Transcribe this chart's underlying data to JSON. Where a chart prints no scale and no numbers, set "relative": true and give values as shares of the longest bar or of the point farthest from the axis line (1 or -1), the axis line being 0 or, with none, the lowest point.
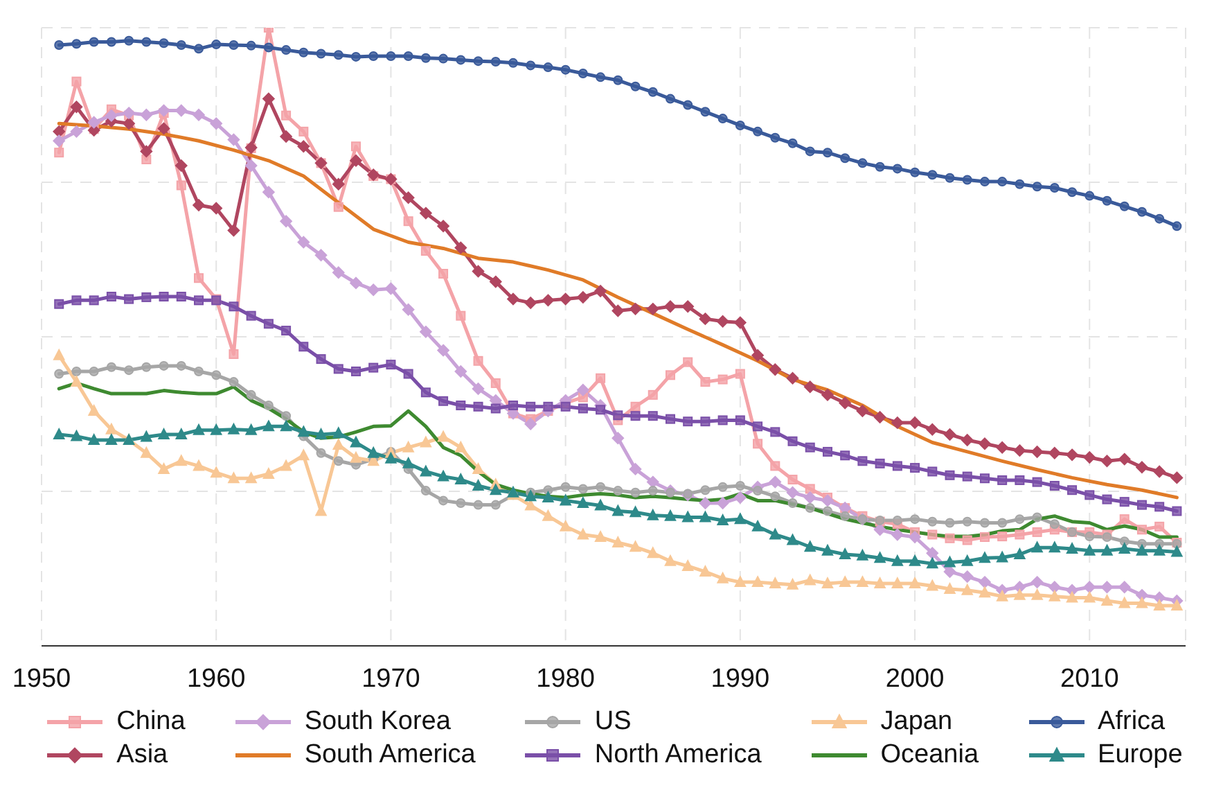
{
  "chart_data": {
    "type": "line",
    "relative": true,
    "x": [
      1951,
      1952,
      1953,
      1954,
      1955,
      1956,
      1957,
      1958,
      1959,
      1960,
      1961,
      1962,
      1963,
      1964,
      1965,
      1966,
      1967,
      1968,
      1969,
      1970,
      1971,
      1972,
      1973,
      1974,
      1975,
      1976,
      1977,
      1978,
      1979,
      1980,
      1981,
      1982,
      1983,
      1984,
      1985,
      1986,
      1987,
      1988,
      1989,
      1990,
      1991,
      1992,
      1993,
      1994,
      1995,
      1996,
      1997,
      1998,
      1999,
      2000,
      2001,
      2002,
      2003,
      2004,
      2005,
      2006,
      2007,
      2008,
      2009,
      2010,
      2011,
      2012,
      2013,
      2014,
      2015
    ],
    "xlim": [
      1950,
      2015.5
    ],
    "xticks": [
      1950,
      1960,
      1970,
      1980,
      1990,
      2000,
      2010
    ],
    "grid": true,
    "legend": "bottom",
    "series": [
      {
        "name": "China",
        "color": "#f4a3a8",
        "marker": "square",
        "values": [
          0.798,
          0.913,
          0.836,
          0.868,
          0.858,
          0.787,
          0.862,
          0.745,
          0.595,
          0.561,
          0.472,
          0.805,
          1.0,
          0.858,
          0.832,
          0.781,
          0.71,
          0.808,
          0.76,
          0.755,
          0.687,
          0.639,
          0.602,
          0.534,
          0.461,
          0.425,
          0.376,
          0.367,
          0.38,
          0.393,
          0.402,
          0.433,
          0.365,
          0.387,
          0.406,
          0.438,
          0.459,
          0.427,
          0.431,
          0.44,
          0.327,
          0.291,
          0.269,
          0.254,
          0.24,
          0.223,
          0.21,
          0.201,
          0.197,
          0.184,
          0.18,
          0.174,
          0.171,
          0.176,
          0.177,
          0.18,
          0.184,
          0.188,
          0.184,
          0.184,
          0.18,
          0.205,
          0.188,
          0.193,
          0.167
        ]
      },
      {
        "name": "Asia",
        "color": "#b04660",
        "marker": "diamond",
        "values": [
          0.832,
          0.872,
          0.834,
          0.849,
          0.845,
          0.8,
          0.837,
          0.777,
          0.713,
          0.708,
          0.672,
          0.806,
          0.885,
          0.824,
          0.808,
          0.781,
          0.747,
          0.785,
          0.762,
          0.755,
          0.725,
          0.7,
          0.679,
          0.644,
          0.606,
          0.589,
          0.561,
          0.555,
          0.559,
          0.561,
          0.564,
          0.574,
          0.542,
          0.545,
          0.545,
          0.549,
          0.549,
          0.529,
          0.525,
          0.523,
          0.47,
          0.447,
          0.433,
          0.419,
          0.406,
          0.393,
          0.38,
          0.37,
          0.361,
          0.361,
          0.35,
          0.342,
          0.333,
          0.327,
          0.321,
          0.316,
          0.314,
          0.312,
          0.309,
          0.305,
          0.299,
          0.302,
          0.289,
          0.282,
          0.272
        ]
      },
      {
        "name": "South Korea",
        "color": "#c9a2d8",
        "marker": "diamond",
        "values": [
          0.817,
          0.832,
          0.847,
          0.858,
          0.862,
          0.859,
          0.866,
          0.866,
          0.859,
          0.845,
          0.819,
          0.777,
          0.734,
          0.687,
          0.653,
          0.632,
          0.604,
          0.587,
          0.576,
          0.578,
          0.544,
          0.508,
          0.478,
          0.444,
          0.416,
          0.397,
          0.376,
          0.359,
          0.38,
          0.397,
          0.414,
          0.389,
          0.336,
          0.286,
          0.265,
          0.251,
          0.244,
          0.231,
          0.231,
          0.24,
          0.257,
          0.265,
          0.248,
          0.24,
          0.235,
          0.223,
          0.205,
          0.188,
          0.18,
          0.176,
          0.15,
          0.12,
          0.112,
          0.103,
          0.09,
          0.095,
          0.103,
          0.095,
          0.09,
          0.095,
          0.095,
          0.095,
          0.082,
          0.078,
          0.073
        ]
      },
      {
        "name": "South America",
        "color": "#e07b28",
        "marker": "none",
        "x": [
          1951,
          1953,
          1955,
          1957,
          1959,
          1961,
          1963,
          1965,
          1967,
          1969,
          1971,
          1973,
          1975,
          1977,
          1979,
          1981,
          1983,
          1985,
          1987,
          1989,
          1991,
          1993,
          1995,
          1997,
          1999,
          2001,
          2003,
          2005,
          2007,
          2009,
          2011,
          2013,
          2015
        ],
        "values": [
          0.845,
          0.841,
          0.836,
          0.828,
          0.817,
          0.802,
          0.785,
          0.76,
          0.717,
          0.674,
          0.653,
          0.643,
          0.627,
          0.621,
          0.608,
          0.592,
          0.564,
          0.538,
          0.512,
          0.487,
          0.461,
          0.431,
          0.414,
          0.389,
          0.355,
          0.329,
          0.314,
          0.299,
          0.285,
          0.272,
          0.261,
          0.252,
          0.24
        ]
      },
      {
        "name": "US",
        "color": "#a6a6a6",
        "marker": "circle",
        "values": [
          0.44,
          0.444,
          0.444,
          0.451,
          0.446,
          0.451,
          0.453,
          0.453,
          0.444,
          0.438,
          0.427,
          0.406,
          0.389,
          0.372,
          0.339,
          0.312,
          0.299,
          0.293,
          0.302,
          0.314,
          0.286,
          0.251,
          0.235,
          0.231,
          0.228,
          0.228,
          0.244,
          0.248,
          0.252,
          0.257,
          0.254,
          0.257,
          0.251,
          0.248,
          0.251,
          0.248,
          0.246,
          0.252,
          0.257,
          0.259,
          0.251,
          0.242,
          0.231,
          0.223,
          0.218,
          0.21,
          0.205,
          0.203,
          0.203,
          0.205,
          0.201,
          0.199,
          0.201,
          0.199,
          0.199,
          0.205,
          0.208,
          0.197,
          0.184,
          0.177,
          0.176,
          0.169,
          0.165,
          0.165,
          0.165
        ]
      },
      {
        "name": "North America",
        "color": "#7a4fa8",
        "marker": "square",
        "values": [
          0.553,
          0.559,
          0.559,
          0.565,
          0.561,
          0.564,
          0.565,
          0.565,
          0.559,
          0.559,
          0.549,
          0.534,
          0.521,
          0.51,
          0.484,
          0.464,
          0.448,
          0.444,
          0.45,
          0.455,
          0.44,
          0.41,
          0.396,
          0.389,
          0.387,
          0.384,
          0.389,
          0.387,
          0.387,
          0.387,
          0.384,
          0.382,
          0.373,
          0.372,
          0.372,
          0.367,
          0.363,
          0.363,
          0.365,
          0.365,
          0.355,
          0.346,
          0.331,
          0.321,
          0.314,
          0.308,
          0.299,
          0.295,
          0.291,
          0.288,
          0.282,
          0.276,
          0.274,
          0.271,
          0.268,
          0.268,
          0.265,
          0.259,
          0.252,
          0.244,
          0.237,
          0.233,
          0.228,
          0.225,
          0.218
        ]
      },
      {
        "name": "Japan",
        "color": "#f8c795",
        "marker": "triangle",
        "values": [
          0.47,
          0.427,
          0.38,
          0.35,
          0.333,
          0.312,
          0.286,
          0.299,
          0.291,
          0.28,
          0.271,
          0.271,
          0.278,
          0.291,
          0.308,
          0.218,
          0.325,
          0.304,
          0.299,
          0.312,
          0.321,
          0.329,
          0.338,
          0.321,
          0.286,
          0.261,
          0.244,
          0.227,
          0.21,
          0.193,
          0.18,
          0.176,
          0.167,
          0.16,
          0.15,
          0.137,
          0.129,
          0.12,
          0.109,
          0.103,
          0.103,
          0.101,
          0.099,
          0.106,
          0.101,
          0.103,
          0.103,
          0.101,
          0.101,
          0.101,
          0.097,
          0.092,
          0.09,
          0.086,
          0.08,
          0.082,
          0.082,
          0.08,
          0.078,
          0.078,
          0.073,
          0.069,
          0.069,
          0.065,
          0.065
        ]
      },
      {
        "name": "Oceania",
        "color": "#3e8a30",
        "marker": "none",
        "values": [
          0.416,
          0.425,
          0.416,
          0.408,
          0.408,
          0.408,
          0.413,
          0.41,
          0.408,
          0.408,
          0.419,
          0.397,
          0.384,
          0.367,
          0.346,
          0.336,
          0.338,
          0.346,
          0.355,
          0.356,
          0.38,
          0.355,
          0.321,
          0.308,
          0.282,
          0.261,
          0.252,
          0.246,
          0.242,
          0.24,
          0.244,
          0.246,
          0.244,
          0.24,
          0.242,
          0.24,
          0.237,
          0.235,
          0.237,
          0.246,
          0.235,
          0.235,
          0.229,
          0.223,
          0.214,
          0.205,
          0.199,
          0.193,
          0.188,
          0.184,
          0.18,
          0.177,
          0.177,
          0.18,
          0.186,
          0.188,
          0.205,
          0.21,
          0.201,
          0.199,
          0.188,
          0.194,
          0.188,
          0.176,
          0.176
        ]
      },
      {
        "name": "Africa",
        "color": "#3a5a9a",
        "marker": "circle",
        "values": [
          0.972,
          0.974,
          0.977,
          0.977,
          0.979,
          0.977,
          0.975,
          0.972,
          0.966,
          0.973,
          0.972,
          0.971,
          0.968,
          0.964,
          0.96,
          0.958,
          0.956,
          0.953,
          0.954,
          0.954,
          0.954,
          0.951,
          0.95,
          0.948,
          0.946,
          0.945,
          0.943,
          0.939,
          0.936,
          0.932,
          0.926,
          0.92,
          0.915,
          0.905,
          0.896,
          0.885,
          0.875,
          0.864,
          0.853,
          0.842,
          0.832,
          0.822,
          0.813,
          0.8,
          0.798,
          0.789,
          0.781,
          0.775,
          0.772,
          0.766,
          0.762,
          0.757,
          0.754,
          0.751,
          0.751,
          0.747,
          0.743,
          0.741,
          0.734,
          0.728,
          0.72,
          0.711,
          0.702,
          0.691,
          0.679
        ]
      },
      {
        "name": "Europe",
        "color": "#2e8a8a",
        "marker": "triangle",
        "values": [
          0.342,
          0.339,
          0.333,
          0.333,
          0.333,
          0.338,
          0.342,
          0.342,
          0.349,
          0.349,
          0.35,
          0.349,
          0.355,
          0.355,
          0.346,
          0.342,
          0.344,
          0.329,
          0.312,
          0.303,
          0.295,
          0.282,
          0.274,
          0.269,
          0.259,
          0.252,
          0.248,
          0.242,
          0.24,
          0.235,
          0.231,
          0.227,
          0.218,
          0.216,
          0.211,
          0.21,
          0.208,
          0.208,
          0.203,
          0.205,
          0.193,
          0.18,
          0.171,
          0.16,
          0.154,
          0.148,
          0.146,
          0.142,
          0.137,
          0.137,
          0.133,
          0.135,
          0.137,
          0.142,
          0.143,
          0.148,
          0.159,
          0.159,
          0.157,
          0.154,
          0.154,
          0.157,
          0.154,
          0.154,
          0.152
        ]
      }
    ]
  }
}
